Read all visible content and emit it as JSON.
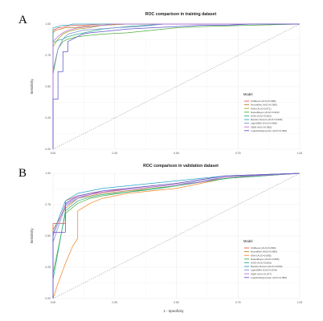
{
  "chart_data": [
    {
      "panel_letter": "A",
      "type": "line",
      "title": "ROC comparison in training dataset",
      "xlabel": "",
      "ylabel": "Sensitivity",
      "xlim": [
        0,
        1
      ],
      "ylim": [
        0,
        1
      ],
      "x_ticks": [
        "0.00",
        "0.25",
        "0.50",
        "0.75",
        "1.00"
      ],
      "y_ticks": [
        "0.00",
        "0.25",
        "0.50",
        "0.75",
        "1.00"
      ],
      "grid": true,
      "diagonal_reference": true,
      "legend": {
        "title": "Model",
        "position": "right"
      },
      "series": [
        {
          "name": "XGBoost (AUC=0.988)",
          "color": "#e4584c",
          "x": [
            0,
            0,
            0.01,
            0.02,
            0.03,
            0.05,
            0.08,
            0.12,
            0.2,
            0.4,
            1
          ],
          "y": [
            0,
            0.95,
            0.96,
            0.97,
            0.97,
            0.98,
            0.99,
            0.99,
            1,
            1,
            1
          ]
        },
        {
          "name": "NeuralNet (AUC=0.980)",
          "color": "#c0822e",
          "x": [
            0,
            0,
            0.01,
            0.03,
            0.05,
            0.08,
            0.12,
            0.2,
            0.3,
            1
          ],
          "y": [
            0,
            0.93,
            0.95,
            0.96,
            0.97,
            0.97,
            0.98,
            0.99,
            1,
            1
          ]
        },
        {
          "name": "KNN (AUC=0.971)",
          "color": "#a5a52a",
          "x": [
            0,
            0,
            0.01,
            0.02,
            0.04,
            0.06,
            0.1,
            0.15,
            0.2,
            0.3,
            1
          ],
          "y": [
            0,
            0.82,
            0.85,
            0.88,
            0.92,
            0.94,
            0.96,
            0.97,
            0.99,
            1,
            1
          ]
        },
        {
          "name": "NaiveBayes (AUC=0.929)",
          "color": "#4fae3f",
          "x": [
            0,
            0,
            0.02,
            0.04,
            0.06,
            0.1,
            0.15,
            0.2,
            0.3,
            0.4,
            0.5,
            0.6,
            0.8,
            1
          ],
          "y": [
            0,
            0.6,
            0.8,
            0.86,
            0.88,
            0.9,
            0.91,
            0.92,
            0.93,
            0.95,
            0.97,
            0.98,
            0.99,
            1
          ]
        },
        {
          "name": "SVM (AUC=0.962)",
          "color": "#2fad8a",
          "x": [
            0,
            0,
            0.02,
            0.04,
            0.06,
            0.1,
            0.15,
            0.2,
            0.3,
            0.45,
            1
          ],
          "y": [
            0,
            0.85,
            0.87,
            0.88,
            0.9,
            0.92,
            0.94,
            0.96,
            0.98,
            1,
            1
          ]
        },
        {
          "name": "RandomForest (AUC=0.996)",
          "color": "#26a4c9",
          "x": [
            0,
            0,
            0.02,
            0.04,
            0.06,
            0.08,
            0.1,
            0.2,
            1
          ],
          "y": [
            0,
            0.97,
            0.98,
            0.99,
            0.99,
            1,
            1,
            1,
            1
          ]
        },
        {
          "name": "LightGBM (AUC=0.968)",
          "color": "#7b8fd8",
          "x": [
            0,
            0,
            0.02,
            0.04,
            0.06,
            0.1,
            0.12,
            0.18,
            0.25,
            0.35,
            0.45,
            1
          ],
          "y": [
            0,
            0.63,
            0.8,
            0.88,
            0.92,
            0.94,
            0.95,
            0.96,
            0.97,
            0.98,
            1,
            1
          ]
        },
        {
          "name": "GBM (AUC=0.983)",
          "color": "#c46bd1",
          "x": [
            0,
            0,
            0.02,
            0.04,
            0.06,
            0.1,
            0.15,
            0.25,
            1
          ],
          "y": [
            0,
            0.86,
            0.9,
            0.93,
            0.95,
            0.97,
            0.98,
            1,
            1
          ]
        },
        {
          "name": "LogisticRegression (AUC=0.950)",
          "color": "#5a55c9",
          "x": [
            0,
            0,
            0.02,
            0.02,
            0.04,
            0.04,
            0.06,
            0.06,
            0.08,
            0.1,
            0.12,
            0.15,
            0.2,
            0.3,
            0.4,
            0.5,
            0.6,
            0.7,
            0.8,
            1
          ],
          "y": [
            0,
            0.4,
            0.4,
            0.62,
            0.62,
            0.78,
            0.78,
            0.86,
            0.88,
            0.9,
            0.92,
            0.93,
            0.94,
            0.96,
            0.97,
            0.98,
            0.99,
            0.99,
            1,
            1
          ]
        }
      ]
    },
    {
      "panel_letter": "B",
      "type": "line",
      "title": "ROC comparison in validation dataset",
      "xlabel": "1 - Specificity",
      "ylabel": "Sensitivity",
      "xlim": [
        0,
        1
      ],
      "ylim": [
        0,
        1
      ],
      "x_ticks": [
        "0.00",
        "0.25",
        "0.50",
        "0.75",
        "1.00"
      ],
      "y_ticks": [
        "0.00",
        "0.25",
        "0.50",
        "0.75",
        "1.00"
      ],
      "grid": true,
      "diagonal_reference": true,
      "legend": {
        "title": "Model",
        "position": "right"
      },
      "series": [
        {
          "name": "XGBoost (AUC=0.890)",
          "color": "#e4584c",
          "x": [
            0,
            0,
            0.05,
            0.05,
            0.1,
            0.15,
            0.2,
            0.3,
            0.4,
            0.5,
            0.6,
            0.7,
            1
          ],
          "y": [
            0,
            0.6,
            0.6,
            0.78,
            0.82,
            0.84,
            0.85,
            0.88,
            0.9,
            0.92,
            0.95,
            0.98,
            1
          ]
        },
        {
          "name": "NeuralNet (AUC=0.880)",
          "color": "#c0822e",
          "x": [
            0,
            0,
            0.05,
            0.1,
            0.15,
            0.2,
            0.3,
            0.4,
            0.5,
            0.6,
            0.7,
            1
          ],
          "y": [
            0,
            0.55,
            0.72,
            0.8,
            0.82,
            0.84,
            0.86,
            0.88,
            0.9,
            0.93,
            0.97,
            1
          ]
        },
        {
          "name": "KNN (AUC=0.806)",
          "color": "#f08a2c",
          "x": [
            0,
            0.02,
            0.05,
            0.08,
            0.1,
            0.1,
            0.15,
            0.2,
            0.3,
            0.4,
            0.5,
            0.6,
            0.7,
            1
          ],
          "y": [
            0,
            0.12,
            0.28,
            0.42,
            0.48,
            0.7,
            0.76,
            0.8,
            0.84,
            0.86,
            0.88,
            0.92,
            0.96,
            1
          ]
        },
        {
          "name": "NaiveBayes (AUC=0.856)",
          "color": "#4fae3f",
          "x": [
            0,
            0,
            0.05,
            0.1,
            0.15,
            0.2,
            0.3,
            0.4,
            0.5,
            0.6,
            0.75,
            1
          ],
          "y": [
            0,
            0.2,
            0.68,
            0.76,
            0.8,
            0.82,
            0.85,
            0.88,
            0.9,
            0.93,
            0.97,
            1
          ]
        },
        {
          "name": "SVM (AUC=0.853)",
          "color": "#2fad8a",
          "x": [
            0,
            0,
            0.05,
            0.1,
            0.15,
            0.2,
            0.3,
            0.4,
            0.5,
            0.6,
            0.7,
            1
          ],
          "y": [
            0,
            0.15,
            0.7,
            0.78,
            0.81,
            0.83,
            0.85,
            0.87,
            0.9,
            0.93,
            0.96,
            1
          ]
        },
        {
          "name": "RandomForest (AUC=0.893)",
          "color": "#26a4c9",
          "x": [
            0,
            0,
            0.05,
            0.1,
            0.15,
            0.2,
            0.3,
            0.4,
            0.5,
            0.6,
            0.7,
            1
          ],
          "y": [
            0,
            0.52,
            0.78,
            0.84,
            0.86,
            0.88,
            0.9,
            0.92,
            0.94,
            0.96,
            0.98,
            1
          ]
        },
        {
          "name": "LightGBM (AUC=0.878)",
          "color": "#7b8fd8",
          "x": [
            0,
            0,
            0.05,
            0.1,
            0.15,
            0.2,
            0.3,
            0.4,
            0.5,
            0.6,
            0.7,
            1
          ],
          "y": [
            0,
            0.45,
            0.74,
            0.8,
            0.83,
            0.85,
            0.87,
            0.89,
            0.91,
            0.94,
            0.97,
            1
          ]
        },
        {
          "name": "GBM (AUC=0.877)",
          "color": "#c46bd1",
          "x": [
            0,
            0,
            0.05,
            0.1,
            0.15,
            0.2,
            0.3,
            0.4,
            0.5,
            0.6,
            0.7,
            1
          ],
          "y": [
            0,
            0.5,
            0.75,
            0.81,
            0.83,
            0.85,
            0.87,
            0.89,
            0.91,
            0.93,
            0.97,
            1
          ]
        },
        {
          "name": "LogisticRegression (AUC=0.882)",
          "color": "#5a55c9",
          "x": [
            0,
            0,
            0.05,
            0.05,
            0.1,
            0.15,
            0.2,
            0.3,
            0.4,
            0.5,
            0.6,
            0.7,
            1
          ],
          "y": [
            0,
            0.53,
            0.53,
            0.76,
            0.82,
            0.84,
            0.86,
            0.88,
            0.9,
            0.92,
            0.95,
            0.98,
            1
          ]
        }
      ]
    }
  ]
}
